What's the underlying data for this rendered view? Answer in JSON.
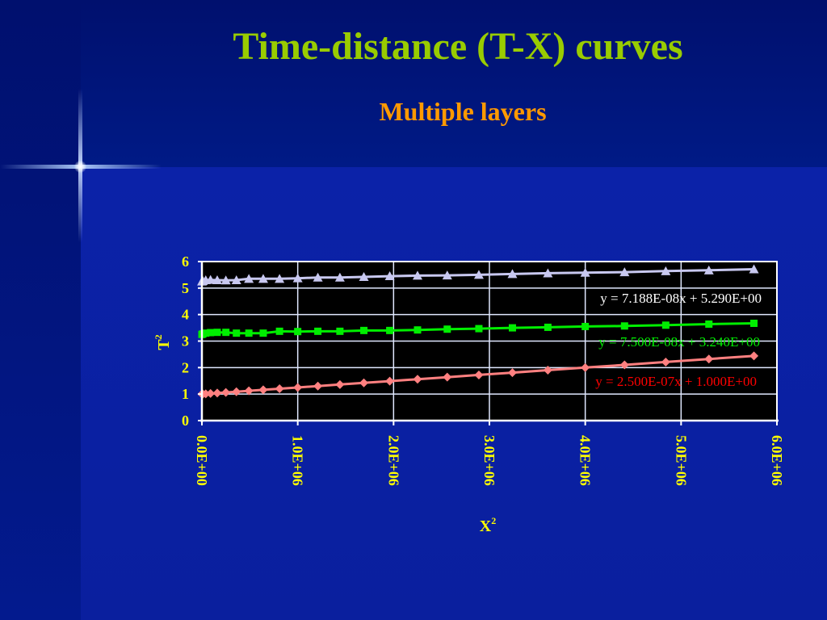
{
  "slide": {
    "title": "Time-distance (T-X) curves",
    "subtitle": "Multiple layers"
  },
  "colors": {
    "background": "#0a1a9c",
    "title": "#99cc00",
    "subtitle": "#ff9900",
    "axis_text": "#ffff00",
    "plot_bg": "#000000",
    "grid": "#e0e8ff"
  },
  "chart_data": {
    "type": "scatter",
    "xlabel": "X",
    "xlabel_sup": "2",
    "ylabel": "T",
    "ylabel_sup": "2",
    "xlim": [
      0,
      6000000
    ],
    "ylim": [
      0,
      6
    ],
    "x_ticks": [
      "0.0E+00",
      "1.0E+06",
      "2.0E+06",
      "3.0E+06",
      "4.0E+06",
      "5.0E+06",
      "6.0E+06"
    ],
    "y_ticks": [
      "0",
      "1",
      "2",
      "3",
      "4",
      "5",
      "6"
    ],
    "grid": true,
    "series": [
      {
        "marker": "triangle",
        "color": "#c8c8f0",
        "slope": 7.188e-08,
        "intercept": 5.29,
        "trendline_label": "y = 7.188E-08x + 5.290E+00",
        "label_color": "#ffffff",
        "x": [
          0,
          10000,
          40000,
          90000,
          160000,
          250000,
          360000,
          490000,
          640000,
          810000,
          1000000,
          1210000,
          1440000,
          1690000,
          1960000,
          2250000,
          2560000,
          2890000,
          3240000,
          3610000,
          4000000,
          4410000,
          4840000,
          5290000,
          5760000
        ],
        "y": [
          5.25,
          5.27,
          5.3,
          5.31,
          5.3,
          5.29,
          5.3,
          5.35,
          5.35,
          5.35,
          5.37,
          5.4,
          5.4,
          5.42,
          5.45,
          5.47,
          5.48,
          5.5,
          5.53,
          5.56,
          5.58,
          5.6,
          5.64,
          5.67,
          5.71
        ]
      },
      {
        "marker": "square",
        "color": "#00ee00",
        "slope": 7.5e-08,
        "intercept": 3.24,
        "trendline_label": "y = 7.500E-08x + 3.240E+00",
        "label_color": "#00ee00",
        "x": [
          0,
          10000,
          40000,
          90000,
          160000,
          250000,
          360000,
          490000,
          640000,
          810000,
          1000000,
          1210000,
          1440000,
          1690000,
          1960000,
          2250000,
          2560000,
          2890000,
          3240000,
          3610000,
          4000000,
          4410000,
          4840000,
          5290000,
          5760000
        ],
        "y": [
          3.25,
          3.27,
          3.3,
          3.32,
          3.33,
          3.33,
          3.3,
          3.3,
          3.3,
          3.37,
          3.36,
          3.37,
          3.37,
          3.4,
          3.4,
          3.42,
          3.45,
          3.47,
          3.5,
          3.52,
          3.55,
          3.57,
          3.6,
          3.64,
          3.67
        ]
      },
      {
        "marker": "diamond",
        "color": "#ff8080",
        "slope": 2.5e-07,
        "intercept": 1.0,
        "trendline_label": "y = 2.500E-07x + 1.000E+00",
        "label_color": "#ff0000",
        "x": [
          0,
          10000,
          40000,
          90000,
          160000,
          250000,
          360000,
          490000,
          640000,
          810000,
          1000000,
          1210000,
          1440000,
          1690000,
          1960000,
          2250000,
          2560000,
          2890000,
          3240000,
          3610000,
          4000000,
          4410000,
          4840000,
          5290000,
          5760000
        ],
        "y": [
          1.0,
          1.0025,
          1.01,
          1.0225,
          1.04,
          1.0625,
          1.09,
          1.1225,
          1.16,
          1.2025,
          1.25,
          1.3025,
          1.36,
          1.4225,
          1.49,
          1.5625,
          1.64,
          1.7225,
          1.81,
          1.9025,
          2.0,
          2.1025,
          2.21,
          2.3225,
          2.44
        ]
      }
    ]
  }
}
